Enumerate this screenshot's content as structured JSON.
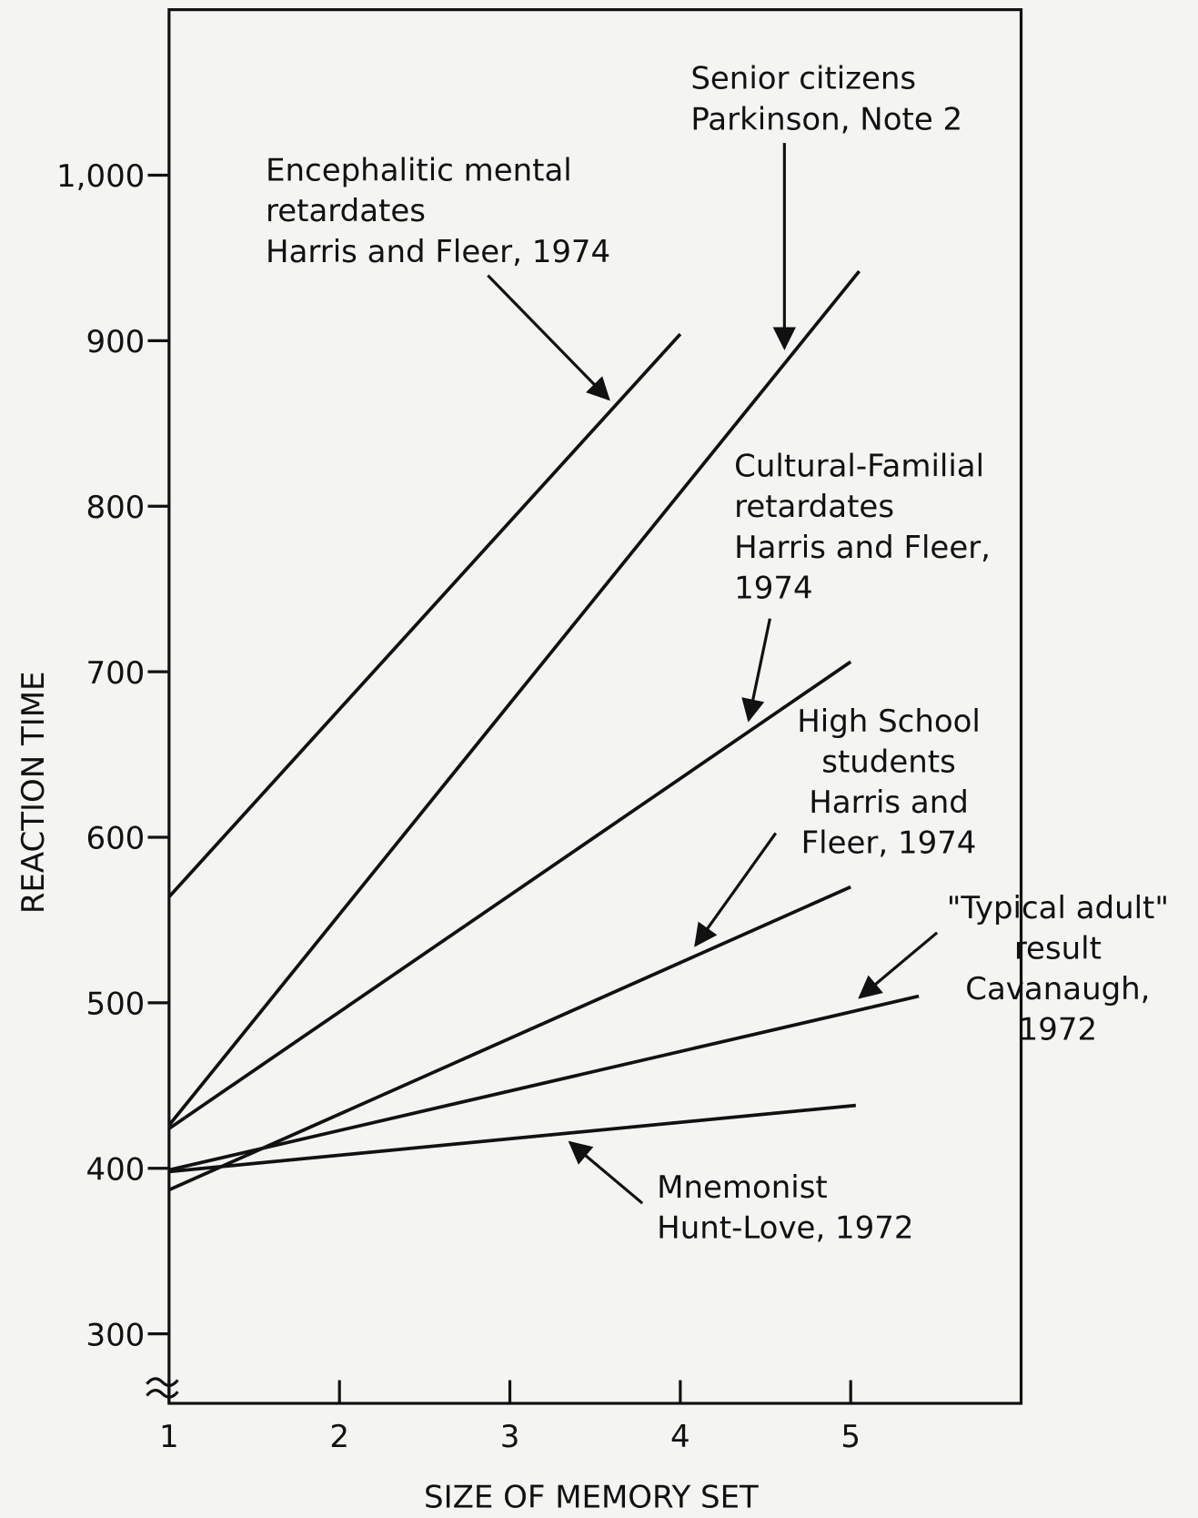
{
  "chart_data": {
    "type": "line",
    "xlabel": "SIZE OF MEMORY SET",
    "ylabel": "REACTION TIME",
    "xlim": [
      1,
      6
    ],
    "xticks": [
      1,
      2,
      3,
      4,
      5
    ],
    "ylim": [
      258,
      1100
    ],
    "yticks": [
      300,
      400,
      500,
      600,
      700,
      800,
      900,
      {
        "value": 1000,
        "label": "1,000"
      }
    ],
    "color": "#111111",
    "series": [
      {
        "label": [
          "Encephalitic mental",
          "retardates",
          "Harris and Fleer, 1974"
        ],
        "x": [
          1,
          4
        ],
        "values": [
          564,
          904
        ]
      },
      {
        "label": [
          "Senior citizens",
          "Parkinson, Note 2"
        ],
        "x": [
          1,
          5.05
        ],
        "values": [
          426,
          942
        ]
      },
      {
        "label": [
          "Cultural-Familial",
          "retardates",
          "Harris and Fleer,",
          "1974"
        ],
        "x": [
          1,
          5
        ],
        "values": [
          424,
          706
        ]
      },
      {
        "label": [
          "High School",
          "students",
          "Harris and",
          "Fleer, 1974"
        ],
        "x": [
          1,
          5
        ],
        "values": [
          387,
          570
        ]
      },
      {
        "label": [
          "\"Typical adult\"",
          "result",
          "Cavanaugh,",
          "1972"
        ],
        "x": [
          1,
          5.4
        ],
        "values": [
          399,
          504
        ]
      },
      {
        "label": [
          "Mnemonist",
          "Hunt-Love, 1972"
        ],
        "x": [
          1,
          5.03
        ],
        "values": [
          398,
          438
        ]
      }
    ]
  }
}
